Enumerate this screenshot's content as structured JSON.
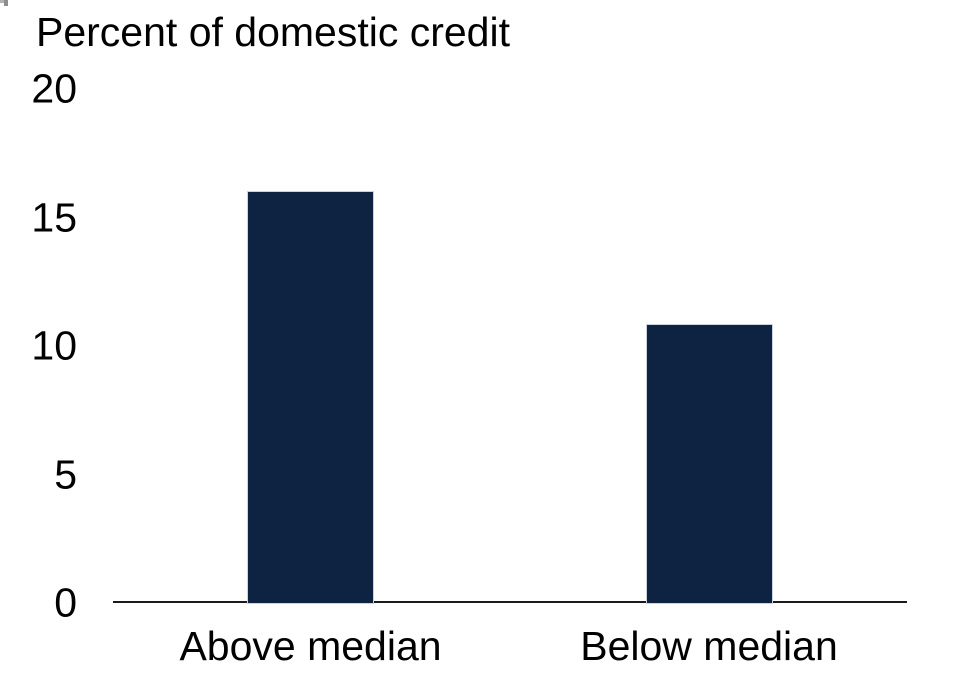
{
  "chart_data": {
    "type": "bar",
    "title": "Percent of domestic credit",
    "categories": [
      "Above median",
      "Below median"
    ],
    "values": [
      16,
      10.8
    ],
    "xlabel": "",
    "ylabel": "Percent of domestic credit",
    "ylim": [
      0,
      20
    ],
    "yticks": [
      0,
      5,
      10,
      15,
      20
    ],
    "grid": false,
    "legend_position": "none",
    "bar_color": "#0e2342",
    "bar_border_color": "#ccd3de",
    "axis_color": "#1a1a1a",
    "text_color": "#000000"
  }
}
